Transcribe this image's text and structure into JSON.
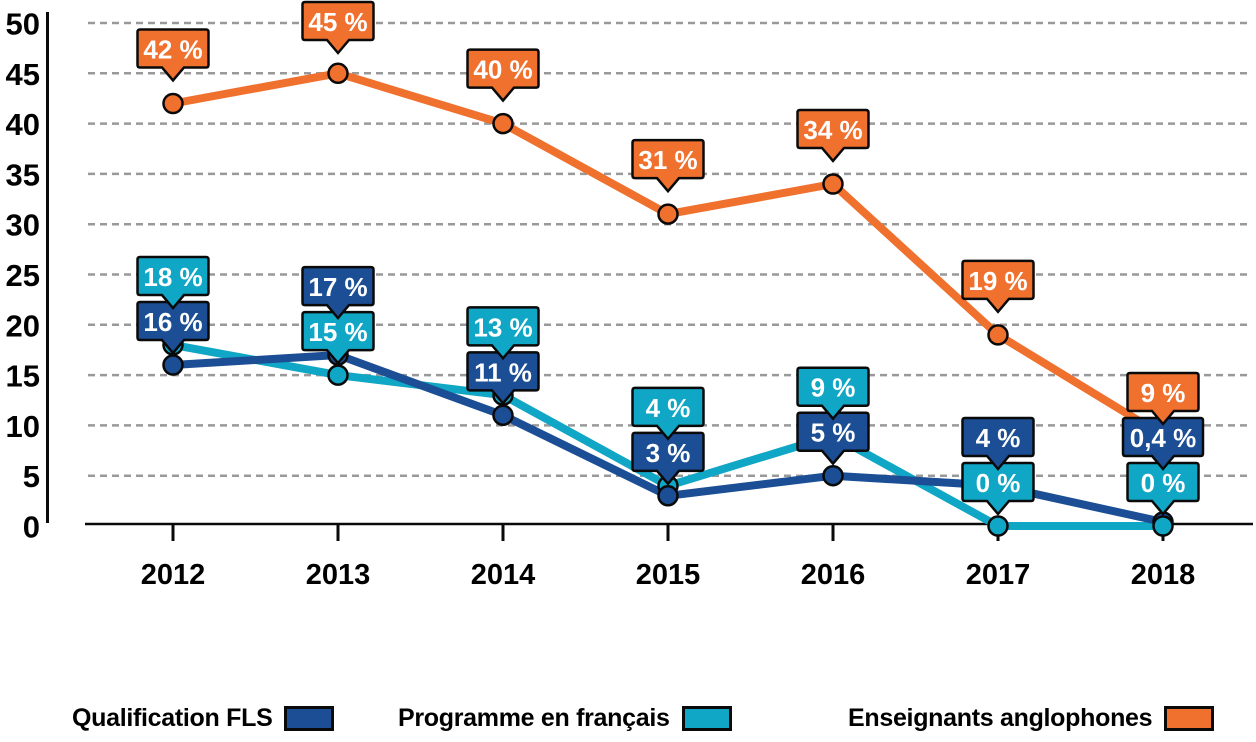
{
  "chart_data": {
    "type": "line",
    "title": "",
    "xlabel": "",
    "ylabel": "",
    "categories": [
      "2012",
      "2013",
      "2014",
      "2015",
      "2016",
      "2017",
      "2018"
    ],
    "ylim": [
      0,
      50
    ],
    "yticks": [
      0,
      5,
      10,
      15,
      20,
      25,
      30,
      35,
      40,
      45,
      50
    ],
    "ytick_labels": [
      "0",
      "5",
      "10",
      "15",
      "20",
      "25",
      "30",
      "35",
      "40",
      "45",
      "50"
    ],
    "grid": "horizontal-dashed",
    "grid_color": "#999999",
    "axis_color": "#0a0a0a",
    "legend_position": "bottom",
    "series": [
      {
        "name": "Qualification FLS",
        "color": "#1B4E94",
        "values": [
          16,
          17,
          11,
          3,
          5,
          4,
          0.4
        ],
        "point_labels": [
          "16 %",
          "17 %",
          "11 %",
          "3 %",
          "5 %",
          "4 %",
          "0,4 %"
        ]
      },
      {
        "name": "Programme en français",
        "color": "#10A7C6",
        "values": [
          18,
          15,
          13,
          4,
          9,
          0,
          0
        ],
        "point_labels": [
          "18 %",
          "15 %",
          "13 %",
          "4 %",
          "9 %",
          "0 %",
          "0 %"
        ]
      },
      {
        "name": "Enseignants anglophones",
        "color": "#F0702E",
        "values": [
          42,
          45,
          40,
          31,
          34,
          19,
          9
        ],
        "point_labels": [
          "42 %",
          "45 %",
          "40 %",
          "31 %",
          "34 %",
          "19 %",
          "9 %"
        ]
      }
    ]
  }
}
